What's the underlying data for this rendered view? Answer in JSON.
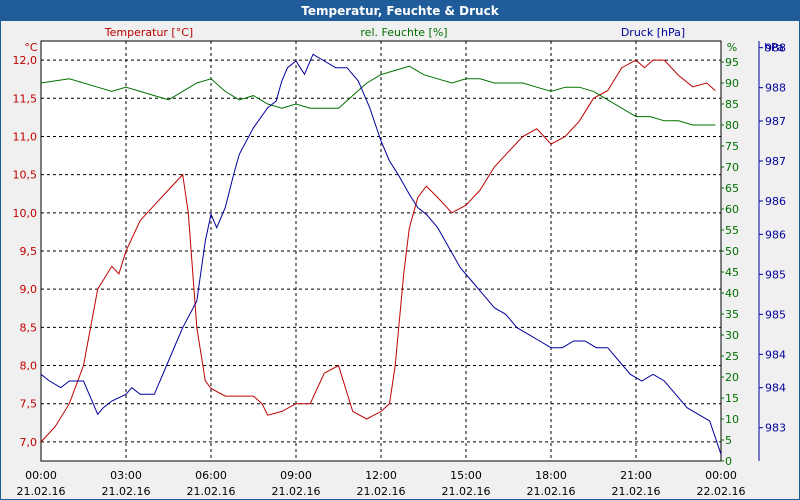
{
  "window": {
    "title": "Temperatur, Feuchte & Druck"
  },
  "colors": {
    "temperature": "#c00000",
    "humidity": "#007000",
    "pressure": "#00009c",
    "grid": "#000000",
    "title_bg": "#1f5c99"
  },
  "chart_data": {
    "type": "line",
    "title": "Temperatur, Feuchte & Druck",
    "x_ticks": [
      {
        "time": "00:00",
        "date": "21.02.16"
      },
      {
        "time": "03:00",
        "date": "21.02.16"
      },
      {
        "time": "06:00",
        "date": "21.02.16"
      },
      {
        "time": "09:00",
        "date": "21.02.16"
      },
      {
        "time": "12:00",
        "date": "21.02.16"
      },
      {
        "time": "15:00",
        "date": "21.02.16"
      },
      {
        "time": "18:00",
        "date": "21.02.16"
      },
      {
        "time": "21:00",
        "date": "21.02.16"
      },
      {
        "time": "00:00",
        "date": "22.02.16"
      }
    ],
    "xlim_hours": [
      0,
      24
    ],
    "axes": {
      "temperature": {
        "unit": "°C",
        "label": "Temperatur [°C]",
        "ylim": [
          6.75,
          12.25
        ],
        "ticks": [
          "7,0",
          "7,5",
          "8,0",
          "8,5",
          "9,0",
          "9,5",
          "10,0",
          "10,5",
          "11,0",
          "11,5",
          "12,0"
        ],
        "tick_values": [
          7.0,
          7.5,
          8.0,
          8.5,
          9.0,
          9.5,
          10.0,
          10.5,
          11.0,
          11.5,
          12.0
        ]
      },
      "humidity": {
        "unit": "%",
        "label": "rel. Feuchte [%]",
        "ylim": [
          0,
          100
        ],
        "ticks": [
          "0",
          "5",
          "10",
          "15",
          "20",
          "25",
          "30",
          "35",
          "40",
          "45",
          "50",
          "55",
          "60",
          "65",
          "70",
          "75",
          "80",
          "85",
          "90",
          "95"
        ],
        "tick_values": [
          0,
          5,
          10,
          15,
          20,
          25,
          30,
          35,
          40,
          45,
          50,
          55,
          60,
          65,
          70,
          75,
          80,
          85,
          90,
          95
        ]
      },
      "pressure": {
        "unit": "hPa",
        "label": "Druck [hPa]",
        "ylim": [
          982.5,
          988.8
        ],
        "ticks": [
          "983",
          "984",
          "984",
          "985",
          "985",
          "986",
          "986",
          "987",
          "987",
          "988",
          "988"
        ],
        "tick_values": [
          983.0,
          983.6,
          984.1,
          984.7,
          985.3,
          985.9,
          986.4,
          987.0,
          987.6,
          988.1,
          988.7
        ]
      }
    },
    "series": [
      {
        "name": "Temperatur [°C]",
        "axis": "temperature",
        "x": [
          0,
          0.5,
          1,
          1.5,
          2,
          2.5,
          2.75,
          3,
          3.5,
          4,
          4.5,
          5,
          5.2,
          5.5,
          5.8,
          6,
          6.5,
          7,
          7.5,
          7.8,
          8,
          8.5,
          9,
          9.5,
          10,
          10.5,
          11,
          11.5,
          12,
          12.3,
          12.5,
          12.8,
          13,
          13.3,
          13.6,
          14,
          14.5,
          15,
          15.5,
          16,
          16.5,
          17,
          17.5,
          18,
          18.5,
          19,
          19.5,
          20,
          20.5,
          21,
          21.3,
          21.6,
          22,
          22.5,
          23,
          23.5,
          23.8
        ],
        "values": [
          7.0,
          7.2,
          7.5,
          8.0,
          9.0,
          9.3,
          9.2,
          9.5,
          9.9,
          10.1,
          10.3,
          10.5,
          10.0,
          8.5,
          7.8,
          7.7,
          7.6,
          7.6,
          7.6,
          7.5,
          7.35,
          7.4,
          7.5,
          7.5,
          7.9,
          8.0,
          7.4,
          7.3,
          7.4,
          7.5,
          8.0,
          9.2,
          9.8,
          10.2,
          10.35,
          10.2,
          10.0,
          10.1,
          10.3,
          10.6,
          10.8,
          11.0,
          11.1,
          10.9,
          11.0,
          11.2,
          11.5,
          11.6,
          11.9,
          12.0,
          11.9,
          12.0,
          12.0,
          11.8,
          11.65,
          11.7,
          11.6
        ]
      },
      {
        "name": "rel. Feuchte [%]",
        "axis": "humidity",
        "x": [
          0,
          1,
          2,
          2.5,
          3,
          3.5,
          4,
          4.5,
          5,
          5.5,
          6,
          6.5,
          7,
          7.5,
          8,
          8.5,
          9,
          9.5,
          10,
          10.5,
          11,
          11.5,
          12,
          12.5,
          13,
          13.5,
          14,
          14.5,
          15,
          15.5,
          16,
          16.5,
          17,
          17.5,
          18,
          18.5,
          19,
          19.5,
          20,
          20.5,
          21,
          21.5,
          22,
          22.5,
          23,
          23.5,
          23.8
        ],
        "values": [
          90,
          91,
          89,
          88,
          89,
          88,
          87,
          86,
          88,
          90,
          91,
          88,
          86,
          87,
          85,
          84,
          85,
          84,
          84,
          84,
          87,
          90,
          92,
          93,
          94,
          92,
          91,
          90,
          91,
          91,
          90,
          90,
          90,
          89,
          88,
          89,
          89,
          88,
          86,
          84,
          82,
          82,
          81,
          81,
          80,
          80,
          80
        ]
      },
      {
        "name": "Druck [hPa]",
        "axis": "pressure",
        "x": [
          0,
          0.3,
          0.7,
          1,
          1.5,
          2,
          2.2,
          2.5,
          3,
          3.2,
          3.5,
          4,
          4.5,
          4.8,
          5,
          5.5,
          5.8,
          6,
          6.2,
          6.5,
          6.8,
          7,
          7.5,
          8,
          8.3,
          8.5,
          8.7,
          9,
          9.3,
          9.6,
          10,
          10.4,
          10.8,
          11.2,
          11.6,
          12,
          12.3,
          12.6,
          13,
          13.3,
          13.6,
          14,
          14.4,
          14.8,
          15.2,
          15.6,
          16,
          16.4,
          16.8,
          17.2,
          17.6,
          18,
          18.4,
          18.8,
          19.2,
          19.6,
          20,
          20.4,
          20.8,
          21.2,
          21.6,
          22,
          22.4,
          22.8,
          23.2,
          23.6,
          24
        ],
        "values": [
          983.8,
          983.7,
          983.6,
          983.7,
          983.7,
          983.2,
          983.3,
          983.4,
          983.5,
          983.6,
          983.5,
          983.5,
          984.0,
          984.3,
          984.5,
          984.9,
          985.8,
          986.2,
          986.0,
          986.3,
          986.8,
          987.1,
          987.5,
          987.8,
          987.9,
          988.2,
          988.4,
          988.5,
          988.3,
          988.6,
          988.5,
          988.4,
          988.4,
          988.2,
          987.8,
          987.3,
          987.0,
          986.8,
          986.5,
          986.3,
          986.2,
          986.0,
          985.7,
          985.4,
          985.2,
          985.0,
          984.8,
          984.7,
          984.5,
          984.4,
          984.3,
          984.2,
          984.2,
          984.3,
          984.3,
          984.2,
          984.2,
          984.0,
          983.8,
          983.7,
          983.8,
          983.7,
          983.5,
          983.3,
          983.2,
          983.1,
          982.6
        ]
      }
    ]
  }
}
